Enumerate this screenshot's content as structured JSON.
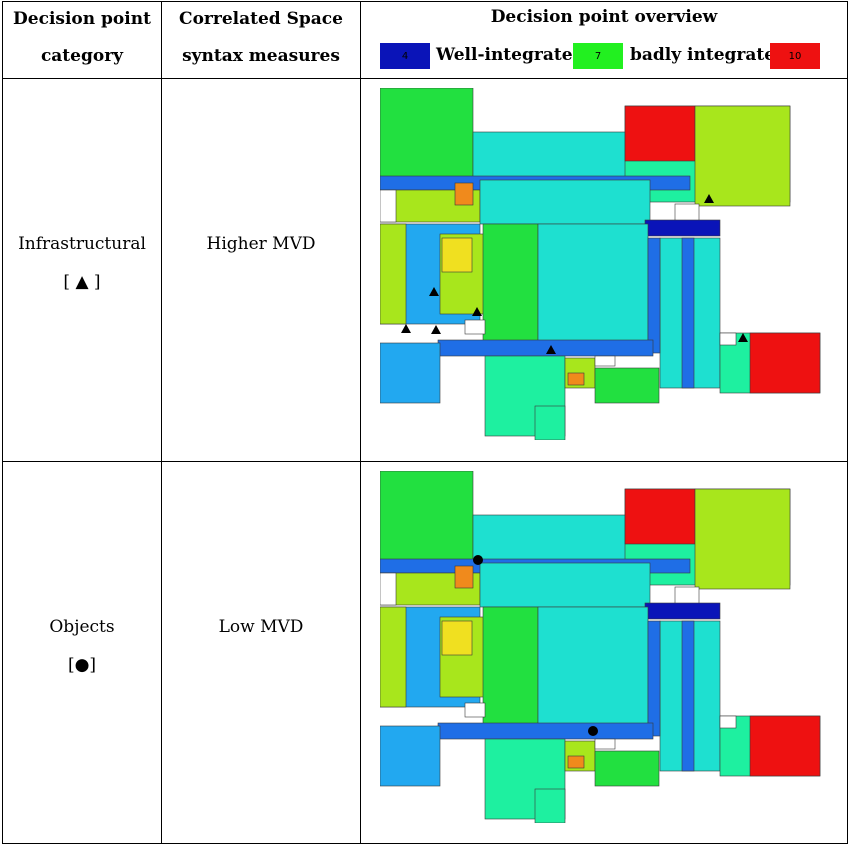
{
  "header": {
    "col1_line1": "Decision point",
    "col1_line2": "category",
    "col2_line1": "Correlated Space",
    "col2_line2": "syntax measures",
    "col3_title": "Decision point overview"
  },
  "legend": {
    "items": [
      {
        "number": "4",
        "label": "Well-integrated",
        "color": "#0a14b8"
      },
      {
        "number": "7",
        "label": "badly integrated",
        "color": "#22f020"
      },
      {
        "number": "10",
        "label": "",
        "color": "#ee1111"
      }
    ]
  },
  "rows": [
    {
      "category": "Infrastructural",
      "symbol": "[ ▲ ]",
      "measure": "Higher MVD",
      "marker_type": "triangle"
    },
    {
      "category": "Objects",
      "symbol": "[●]",
      "measure": "Low MVD",
      "marker_type": "circle"
    }
  ],
  "colors": {
    "deep_blue": "#0a14b8",
    "blue": "#1f6ee6",
    "light_blue": "#22a8f0",
    "cyan": "#1ee0d0",
    "teal_green": "#1ef0a0",
    "green": "#22e040",
    "yellow_green": "#a8e61c",
    "yellow": "#f0e020",
    "orange": "#f08a1c",
    "red": "#ee1111"
  }
}
